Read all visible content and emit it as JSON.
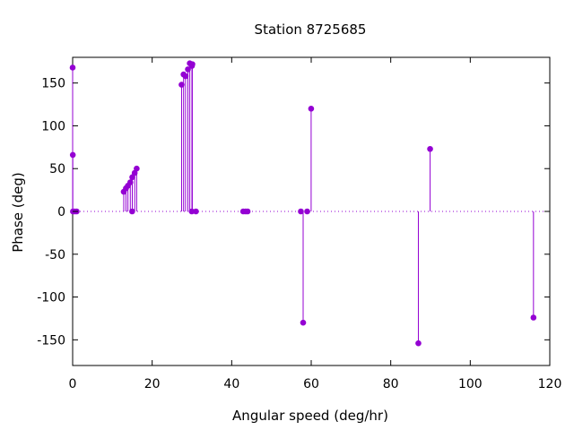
{
  "chart_data": {
    "type": "scatter",
    "style": "impulses",
    "title": "Station 8725685",
    "xlabel": "Angular speed (deg/hr)",
    "ylabel": "Phase (deg)",
    "xlim": [
      0,
      120
    ],
    "ylim": [
      -180,
      180
    ],
    "xticks": [
      "0",
      "20",
      "40",
      "60",
      "80",
      "100",
      "120"
    ],
    "yticks": [
      "-150",
      "-100",
      "-50",
      "0",
      "50",
      "100",
      "150"
    ],
    "grid": false,
    "zero_line": "dotted",
    "color": "#9400d3",
    "points": [
      {
        "x": 0.0,
        "y": 168
      },
      {
        "x": 0.04,
        "y": 66
      },
      {
        "x": 0.08,
        "y": 0
      },
      {
        "x": 0.5,
        "y": 0
      },
      {
        "x": 1.0,
        "y": 0
      },
      {
        "x": 12.85,
        "y": 23
      },
      {
        "x": 13.4,
        "y": 27
      },
      {
        "x": 13.9,
        "y": 30
      },
      {
        "x": 14.5,
        "y": 34
      },
      {
        "x": 14.96,
        "y": 0
      },
      {
        "x": 15.0,
        "y": 40
      },
      {
        "x": 15.6,
        "y": 45
      },
      {
        "x": 16.1,
        "y": 50
      },
      {
        "x": 27.4,
        "y": 148
      },
      {
        "x": 27.9,
        "y": 160
      },
      {
        "x": 28.4,
        "y": 158
      },
      {
        "x": 28.99,
        "y": 166
      },
      {
        "x": 29.46,
        "y": 173
      },
      {
        "x": 29.96,
        "y": 0
      },
      {
        "x": 30.0,
        "y": 170
      },
      {
        "x": 30.1,
        "y": 172
      },
      {
        "x": 31.0,
        "y": 0
      },
      {
        "x": 42.9,
        "y": 0
      },
      {
        "x": 43.5,
        "y": 0
      },
      {
        "x": 44.0,
        "y": 0
      },
      {
        "x": 57.4,
        "y": 0
      },
      {
        "x": 57.97,
        "y": -130
      },
      {
        "x": 58.98,
        "y": 0
      },
      {
        "x": 59.98,
        "y": 120
      },
      {
        "x": 86.95,
        "y": -154
      },
      {
        "x": 89.9,
        "y": 73
      },
      {
        "x": 115.9,
        "y": -124
      }
    ]
  }
}
